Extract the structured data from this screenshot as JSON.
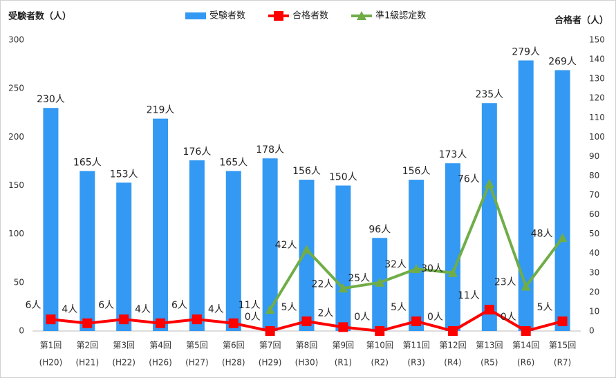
{
  "chart_data": {
    "type": "bar-line",
    "y_title": "受験者数（人）",
    "y2_title": "合格者（人）",
    "categories": [
      [
        "第1回",
        "(H20)"
      ],
      [
        "第2回",
        "(H21)"
      ],
      [
        "第3回",
        "(H22)"
      ],
      [
        "第4回",
        "(H26)"
      ],
      [
        "第5回",
        "(H27)"
      ],
      [
        "第6回",
        "(H28)"
      ],
      [
        "第7回",
        "(H29)"
      ],
      [
        "第8回",
        "(H30)"
      ],
      [
        "第9回",
        "(R1)"
      ],
      [
        "第10回",
        "(R2)"
      ],
      [
        "第11回",
        "(R3)"
      ],
      [
        "第12回",
        "(R4)"
      ],
      [
        "第13回",
        "(R5)"
      ],
      [
        "第14回",
        "(R6)"
      ],
      [
        "第15回",
        "(R7)"
      ]
    ],
    "series": [
      {
        "name": "受験者数",
        "kind": "bar",
        "color": "#3399f3",
        "label_color": "#222222",
        "values": [
          230,
          165,
          153,
          219,
          176,
          165,
          178,
          156,
          150,
          96,
          156,
          173,
          235,
          279,
          269
        ],
        "value_labels": [
          "230人",
          "165人",
          "153人",
          "219人",
          "176人",
          "165人",
          "178人",
          "156人",
          "150人",
          "96人",
          "156人",
          "173人",
          "235人",
          "279人",
          "269人"
        ]
      },
      {
        "name": "合格者数",
        "kind": "line",
        "marker": "square",
        "axis": "y2",
        "color": "#ff0000",
        "label_color": "#e00000",
        "values": [
          6,
          4,
          6,
          4,
          6,
          4,
          0,
          5,
          2,
          0,
          5,
          0,
          11,
          0,
          5
        ],
        "value_labels": [
          "6人",
          "4人",
          "6人",
          "4人",
          "6人",
          "4人",
          "0人",
          "5人",
          "2人",
          "0人",
          "5人",
          "0人",
          "11人",
          "0人",
          "5人"
        ]
      },
      {
        "name": "準1級認定数",
        "kind": "line",
        "marker": "triangle",
        "axis": "y2",
        "color": "#70ad47",
        "label_color": "#1aa33a",
        "values": [
          null,
          null,
          null,
          null,
          null,
          null,
          11,
          42,
          22,
          25,
          32,
          30,
          76,
          23,
          48
        ],
        "value_labels": [
          null,
          null,
          null,
          null,
          null,
          null,
          "11人",
          "42人",
          "22人",
          "25人",
          "32人",
          "30人",
          "76人",
          "23人",
          "48人"
        ]
      }
    ],
    "ylim": [
      0,
      300
    ],
    "yticks": [
      0,
      50,
      100,
      150,
      200,
      250,
      300
    ],
    "y2lim": [
      0,
      150
    ],
    "y2ticks": [
      0,
      10,
      20,
      30,
      40,
      50,
      60,
      70,
      80,
      90,
      100,
      110,
      120,
      130,
      140,
      150
    ],
    "grid": false,
    "legend": "top"
  }
}
